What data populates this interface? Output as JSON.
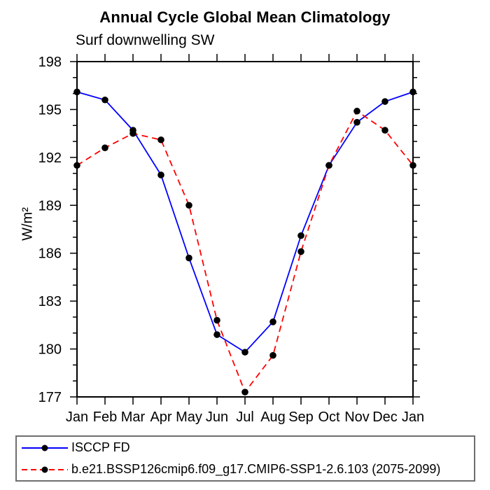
{
  "page": {
    "background": "#ffffff",
    "text_color": "#000000"
  },
  "legend": {
    "items": [
      {
        "label": "ISCCP FD",
        "color": "#0000ff",
        "style": "solid",
        "marker_color": "#000000"
      },
      {
        "label": "b.e21.BSSP126cmip6.f09_g17.CMIP6-SSP1-2.6.103 (2075-2099)",
        "color": "#ff0000",
        "style": "dashed",
        "marker_color": "#000000"
      }
    ]
  },
  "chart_data": {
    "type": "line",
    "title": "Annual Cycle Global Mean Climatology",
    "subtitle": "Surf downwelling SW",
    "ylabel": "W/m²",
    "xlabel": "",
    "categories": [
      "Jan",
      "Feb",
      "Mar",
      "Apr",
      "May",
      "Jun",
      "Jul",
      "Aug",
      "Sep",
      "Oct",
      "Nov",
      "Dec",
      "Jan"
    ],
    "series": [
      {
        "name": "ISCCP FD",
        "color": "#0000ff",
        "line_style": "solid",
        "marker": "filled-circle",
        "marker_color": "#000000",
        "values": [
          196.1,
          195.6,
          193.7,
          190.9,
          185.7,
          180.9,
          179.8,
          181.7,
          187.1,
          191.5,
          194.2,
          195.5,
          196.1
        ]
      },
      {
        "name": "b.e21.BSSP126cmip6.f09_g17.CMIP6-SSP1-2.6.103 (2075-2099)",
        "color": "#ff0000",
        "line_style": "dashed",
        "marker": "filled-circle",
        "marker_color": "#000000",
        "values": [
          191.5,
          192.6,
          193.5,
          193.1,
          189.0,
          181.8,
          177.3,
          179.6,
          186.1,
          191.5,
          194.9,
          193.7,
          191.5
        ]
      }
    ],
    "ylim": [
      177,
      198
    ],
    "yticks": [
      177,
      180,
      183,
      186,
      189,
      192,
      195,
      198
    ],
    "ytick_major_interval": 3,
    "ytick_minor_interval": 1,
    "grid": false,
    "legend_position": "bottom",
    "axis_color": "#000000"
  }
}
